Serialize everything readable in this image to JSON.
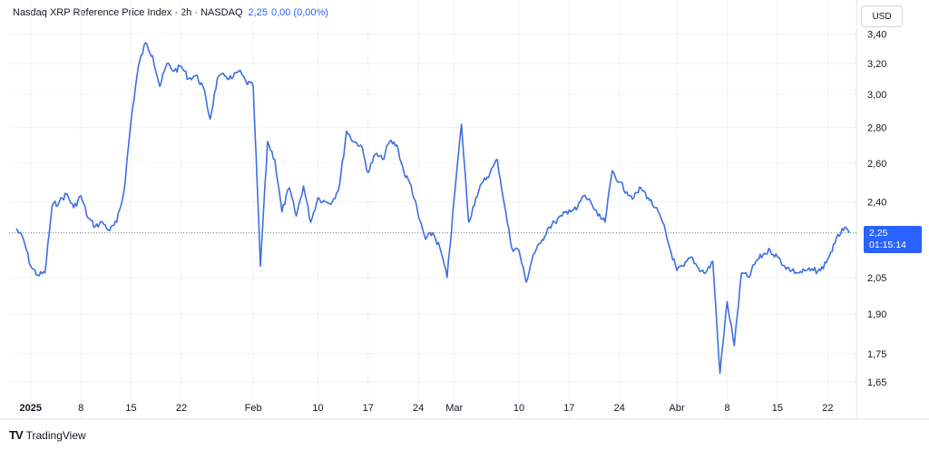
{
  "header": {
    "symbol_title": "Nasdaq XRP Reference Price Index · 2h · NASDAQ",
    "last_value": "2,25",
    "change": "0,00 (0,00%)"
  },
  "currency_button": "USD",
  "price_tag": {
    "value": "2,25",
    "countdown": "01:15:14"
  },
  "branding": {
    "name": "TradingView"
  },
  "colors": {
    "line": "#3d6fe0",
    "tag": "#2962ff",
    "grid": "#f0f3fa",
    "axis_text": "#131722"
  },
  "chart_data": {
    "type": "line",
    "title": "Nasdaq XRP Reference Price Index",
    "interval": "2h",
    "currency": "USD",
    "y_scale": "log",
    "ylim": [
      1.61,
      3.45
    ],
    "y_ticks": [
      {
        "v": 3.4,
        "label": "3,40"
      },
      {
        "v": 3.2,
        "label": "3,20"
      },
      {
        "v": 3.0,
        "label": "3,00"
      },
      {
        "v": 2.8,
        "label": "2,80"
      },
      {
        "v": 2.6,
        "label": "2,60"
      },
      {
        "v": 2.4,
        "label": "2,40"
      },
      {
        "v": 2.05,
        "label": "2,05"
      },
      {
        "v": 1.9,
        "label": "1,90"
      },
      {
        "v": 1.75,
        "label": "1,75"
      },
      {
        "v": 1.65,
        "label": "1,65"
      }
    ],
    "x_range": [
      "2024-12-29",
      "2025-04-26"
    ],
    "x_ticks": [
      {
        "date": "2025-01-01",
        "label": "2025",
        "bold": true
      },
      {
        "date": "2025-01-08",
        "label": "8"
      },
      {
        "date": "2025-01-15",
        "label": "15"
      },
      {
        "date": "2025-01-22",
        "label": "22"
      },
      {
        "date": "2025-02-01",
        "label": "Feb"
      },
      {
        "date": "2025-02-10",
        "label": "10"
      },
      {
        "date": "2025-02-17",
        "label": "17"
      },
      {
        "date": "2025-02-24",
        "label": "24"
      },
      {
        "date": "2025-03-01",
        "label": "Mar"
      },
      {
        "date": "2025-03-10",
        "label": "10"
      },
      {
        "date": "2025-03-17",
        "label": "17"
      },
      {
        "date": "2025-03-24",
        "label": "24"
      },
      {
        "date": "2025-04-01",
        "label": "Abr"
      },
      {
        "date": "2025-04-08",
        "label": "8"
      },
      {
        "date": "2025-04-15",
        "label": "15"
      },
      {
        "date": "2025-04-22",
        "label": "22"
      }
    ],
    "last_price": 2.25,
    "series": [
      {
        "values": [
          [
            "2024-12-30",
            2.27
          ],
          [
            "2024-12-31",
            2.22
          ],
          [
            "2025-01-01",
            2.1
          ],
          [
            "2025-01-02",
            2.06
          ],
          [
            "2025-01-03",
            2.07
          ],
          [
            "2025-01-04",
            2.38
          ],
          [
            "2025-01-05",
            2.4
          ],
          [
            "2025-01-06",
            2.44
          ],
          [
            "2025-01-07",
            2.37
          ],
          [
            "2025-01-08",
            2.43
          ],
          [
            "2025-01-09",
            2.32
          ],
          [
            "2025-01-10",
            2.28
          ],
          [
            "2025-01-11",
            2.3
          ],
          [
            "2025-01-12",
            2.26
          ],
          [
            "2025-01-13",
            2.3
          ],
          [
            "2025-01-14",
            2.45
          ],
          [
            "2025-01-15",
            2.85
          ],
          [
            "2025-01-16",
            3.18
          ],
          [
            "2025-01-17",
            3.34
          ],
          [
            "2025-01-18",
            3.25
          ],
          [
            "2025-01-19",
            3.05
          ],
          [
            "2025-01-20",
            3.2
          ],
          [
            "2025-01-21",
            3.15
          ],
          [
            "2025-01-22",
            3.18
          ],
          [
            "2025-01-23",
            3.1
          ],
          [
            "2025-01-24",
            3.12
          ],
          [
            "2025-01-25",
            3.05
          ],
          [
            "2025-01-26",
            2.85
          ],
          [
            "2025-01-27",
            3.1
          ],
          [
            "2025-01-28",
            3.12
          ],
          [
            "2025-01-29",
            3.1
          ],
          [
            "2025-01-30",
            3.15
          ],
          [
            "2025-01-31",
            3.08
          ],
          [
            "2025-02-01",
            3.05
          ],
          [
            "2025-02-02",
            2.1
          ],
          [
            "2025-02-03",
            2.72
          ],
          [
            "2025-02-04",
            2.62
          ],
          [
            "2025-02-05",
            2.35
          ],
          [
            "2025-02-06",
            2.47
          ],
          [
            "2025-02-07",
            2.33
          ],
          [
            "2025-02-08",
            2.48
          ],
          [
            "2025-02-09",
            2.3
          ],
          [
            "2025-02-10",
            2.42
          ],
          [
            "2025-02-11",
            2.4
          ],
          [
            "2025-02-12",
            2.4
          ],
          [
            "2025-02-13",
            2.48
          ],
          [
            "2025-02-14",
            2.78
          ],
          [
            "2025-02-15",
            2.72
          ],
          [
            "2025-02-16",
            2.7
          ],
          [
            "2025-02-17",
            2.55
          ],
          [
            "2025-02-18",
            2.65
          ],
          [
            "2025-02-19",
            2.62
          ],
          [
            "2025-02-20",
            2.72
          ],
          [
            "2025-02-21",
            2.7
          ],
          [
            "2025-02-22",
            2.55
          ],
          [
            "2025-02-23",
            2.48
          ],
          [
            "2025-02-24",
            2.33
          ],
          [
            "2025-02-25",
            2.22
          ],
          [
            "2025-02-26",
            2.25
          ],
          [
            "2025-02-27",
            2.18
          ],
          [
            "2025-02-28",
            2.05
          ],
          [
            "2025-03-01",
            2.42
          ],
          [
            "2025-03-02",
            2.82
          ],
          [
            "2025-03-03",
            2.3
          ],
          [
            "2025-03-04",
            2.42
          ],
          [
            "2025-03-05",
            2.5
          ],
          [
            "2025-03-06",
            2.55
          ],
          [
            "2025-03-07",
            2.62
          ],
          [
            "2025-03-08",
            2.38
          ],
          [
            "2025-03-09",
            2.18
          ],
          [
            "2025-03-10",
            2.17
          ],
          [
            "2025-03-11",
            2.03
          ],
          [
            "2025-03-12",
            2.15
          ],
          [
            "2025-03-13",
            2.2
          ],
          [
            "2025-03-14",
            2.27
          ],
          [
            "2025-03-15",
            2.3
          ],
          [
            "2025-03-16",
            2.33
          ],
          [
            "2025-03-17",
            2.36
          ],
          [
            "2025-03-18",
            2.36
          ],
          [
            "2025-03-19",
            2.43
          ],
          [
            "2025-03-20",
            2.4
          ],
          [
            "2025-03-21",
            2.33
          ],
          [
            "2025-03-22",
            2.3
          ],
          [
            "2025-03-23",
            2.56
          ],
          [
            "2025-03-24",
            2.5
          ],
          [
            "2025-03-25",
            2.45
          ],
          [
            "2025-03-26",
            2.42
          ],
          [
            "2025-03-27",
            2.47
          ],
          [
            "2025-03-28",
            2.42
          ],
          [
            "2025-03-29",
            2.37
          ],
          [
            "2025-03-30",
            2.3
          ],
          [
            "2025-03-31",
            2.18
          ],
          [
            "2025-04-01",
            2.08
          ],
          [
            "2025-04-02",
            2.1
          ],
          [
            "2025-04-03",
            2.14
          ],
          [
            "2025-04-04",
            2.09
          ],
          [
            "2025-04-05",
            2.07
          ],
          [
            "2025-04-06",
            2.12
          ],
          [
            "2025-04-07",
            1.68
          ],
          [
            "2025-04-08",
            1.95
          ],
          [
            "2025-04-09",
            1.78
          ],
          [
            "2025-04-10",
            2.07
          ],
          [
            "2025-04-11",
            2.05
          ],
          [
            "2025-04-12",
            2.12
          ],
          [
            "2025-04-13",
            2.15
          ],
          [
            "2025-04-14",
            2.17
          ],
          [
            "2025-04-15",
            2.14
          ],
          [
            "2025-04-16",
            2.1
          ],
          [
            "2025-04-17",
            2.08
          ],
          [
            "2025-04-18",
            2.07
          ],
          [
            "2025-04-19",
            2.08
          ],
          [
            "2025-04-20",
            2.08
          ],
          [
            "2025-04-21",
            2.08
          ],
          [
            "2025-04-22",
            2.13
          ],
          [
            "2025-04-23",
            2.2
          ],
          [
            "2025-04-24",
            2.27
          ],
          [
            "2025-04-25",
            2.25
          ]
        ]
      }
    ]
  }
}
